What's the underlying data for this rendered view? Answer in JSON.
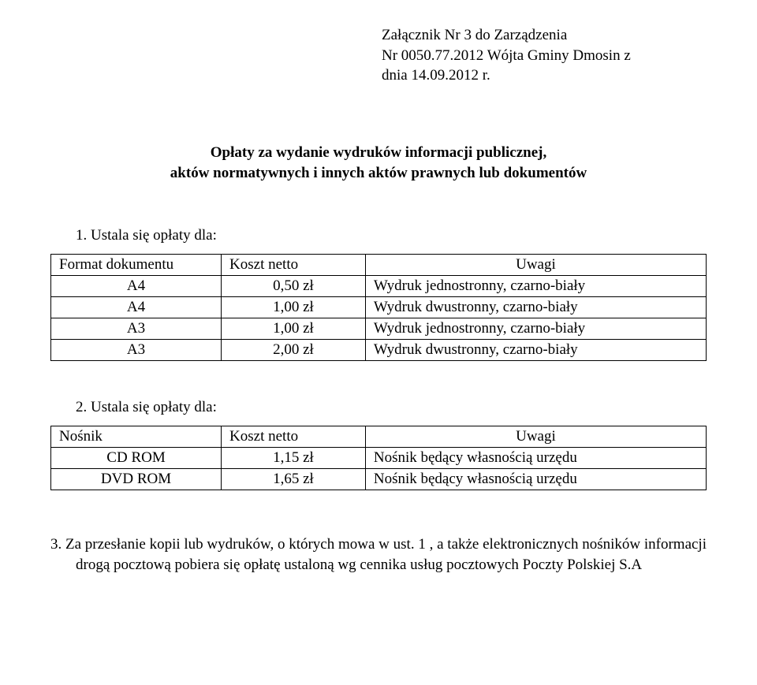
{
  "attachment": {
    "line1": "Załącznik Nr 3 do Zarządzenia",
    "line2": "Nr 0050.77.2012 Wójta Gminy Dmosin z",
    "line3": "dnia 14.09.2012 r."
  },
  "title": {
    "line1": "Opłaty za wydanie wydruków informacji publicznej,",
    "line2": "aktów normatywnych i innych aktów prawnych lub dokumentów"
  },
  "section1": {
    "heading": "1.   Ustala się opłaty dla:",
    "table": {
      "columns": [
        "Format dokumentu",
        "Koszt netto",
        "Uwagi"
      ],
      "rows": [
        [
          "A4",
          "0,50 zł",
          "Wydruk jednostronny, czarno-biały"
        ],
        [
          "A4",
          "1,00 zł",
          "Wydruk dwustronny, czarno-biały"
        ],
        [
          "A3",
          "1,00 zł",
          "Wydruk jednostronny, czarno-biały"
        ],
        [
          "A3",
          "2,00 zł",
          "Wydruk dwustronny, czarno-biały"
        ]
      ],
      "col_align": [
        "center",
        "center",
        "left"
      ],
      "header_align": [
        "left",
        "left",
        "center"
      ]
    }
  },
  "section2": {
    "heading": "2.   Ustala się opłaty dla:",
    "table": {
      "columns": [
        "Nośnik",
        "Koszt netto",
        "Uwagi"
      ],
      "rows": [
        [
          "CD ROM",
          "1,15 zł",
          "Nośnik będący własnością urzędu"
        ],
        [
          "DVD ROM",
          "1,65 zł",
          "Nośnik będący własnością urzędu"
        ]
      ],
      "col_align": [
        "center",
        "center",
        "left"
      ],
      "header_align": [
        "left",
        "left",
        "center"
      ]
    }
  },
  "footer": {
    "text": "3.   Za przesłanie kopii lub wydruków, o których mowa w ust. 1 , a także elektronicznych nośników informacji drogą pocztową pobiera się opłatę ustaloną wg cennika usług pocztowych Poczty Polskiej S.A"
  },
  "style": {
    "background_color": "#ffffff",
    "text_color": "#000000",
    "border_color": "#000000",
    "font_family": "Times New Roman",
    "base_fontsize_pt": 14
  }
}
